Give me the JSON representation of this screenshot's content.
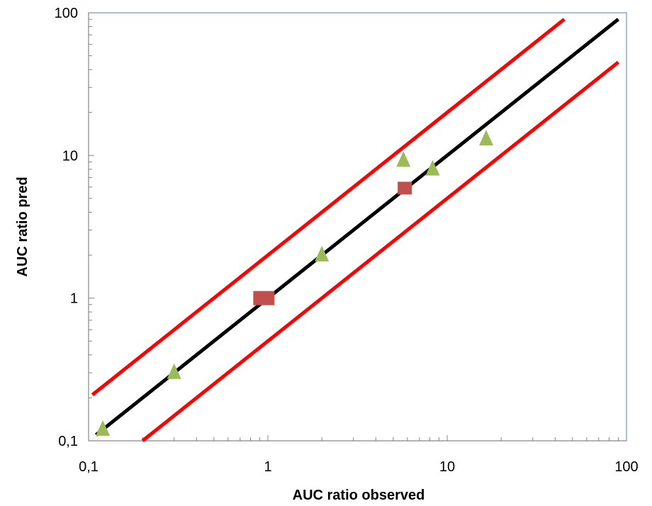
{
  "chart_data": {
    "type": "scatter",
    "title": "",
    "xlabel": "AUC ratio observed",
    "ylabel": "AUC ratio pred",
    "xscale": "log",
    "yscale": "log",
    "xlim": [
      0.1,
      100
    ],
    "ylim": [
      0.1,
      100
    ],
    "x_tick_labels": [
      "0,1",
      "1",
      "10",
      "100"
    ],
    "y_tick_labels": [
      "0,1",
      "1",
      "10",
      "100"
    ],
    "x_tick_values": [
      0.1,
      1,
      10,
      100
    ],
    "y_tick_values": [
      0.1,
      1,
      10,
      100
    ],
    "grid": false,
    "legend": "none",
    "series": [
      {
        "marker": "triangle",
        "color": "#9BBB59",
        "points": [
          [
            0.12,
            0.12
          ],
          [
            0.3,
            0.3
          ],
          [
            2.0,
            2.0
          ],
          [
            5.7,
            9.2
          ],
          [
            8.3,
            8.0
          ],
          [
            16.5,
            13.0
          ]
        ]
      },
      {
        "marker": "square",
        "color": "#C0504D",
        "points": [
          [
            0.95,
            1.0
          ],
          [
            5.8,
            5.9
          ]
        ]
      }
    ],
    "reference_lines": [
      {
        "style": "identity",
        "color": "#000000",
        "from": [
          0.11,
          0.11
        ],
        "to": [
          90,
          90
        ]
      },
      {
        "style": "upper-2x",
        "color": "#FF0000",
        "from": [
          0.105,
          0.21
        ],
        "to": [
          45,
          90
        ]
      },
      {
        "style": "lower-0.5x",
        "color": "#FF0000",
        "from": [
          0.2,
          0.1
        ],
        "to": [
          90,
          45
        ]
      }
    ],
    "axis_color": "#4F81BD"
  }
}
